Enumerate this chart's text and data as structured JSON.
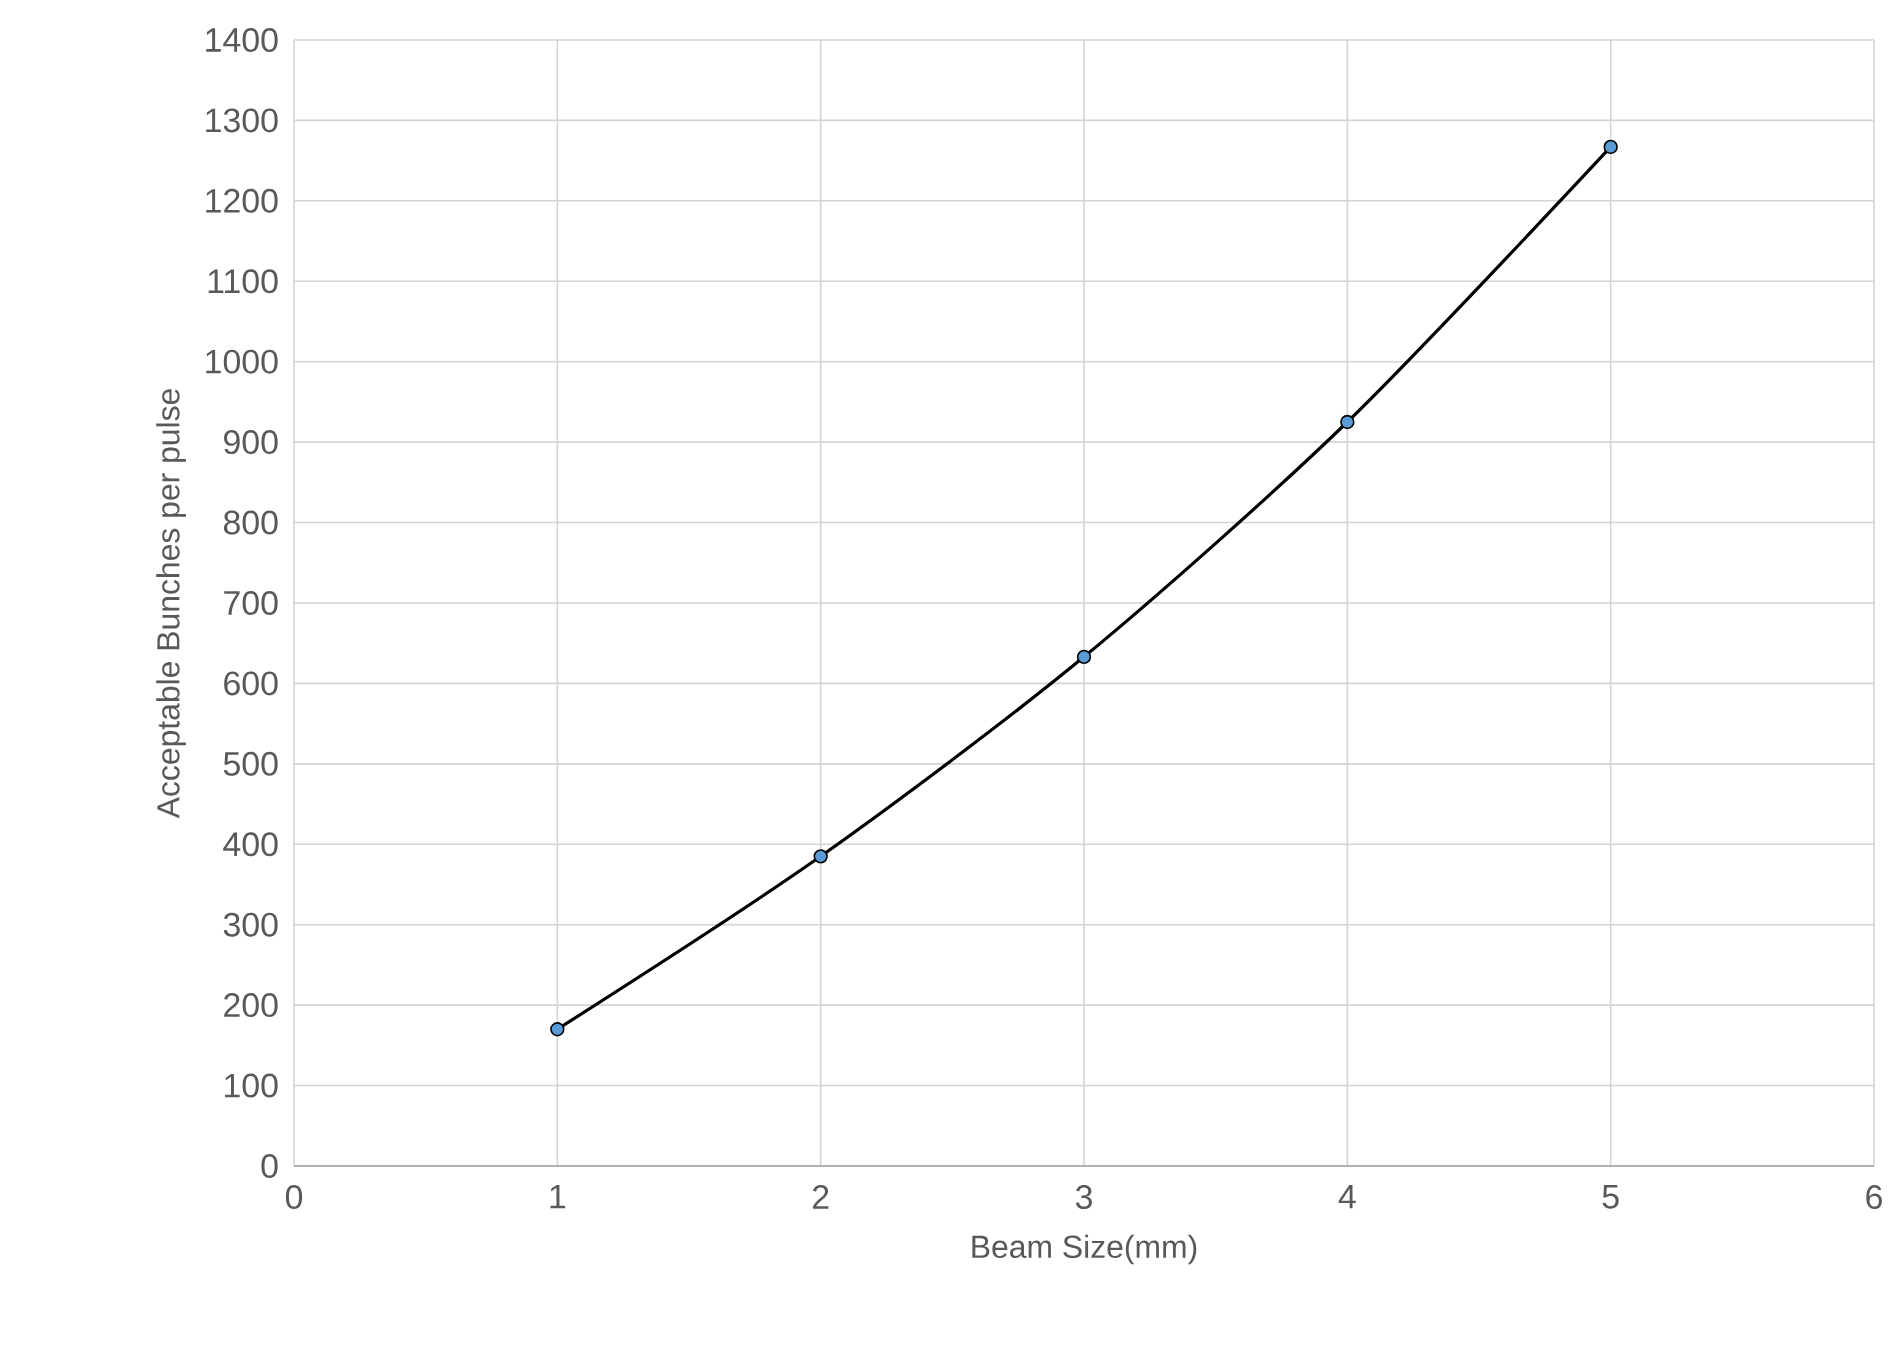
{
  "chart_data": {
    "type": "line",
    "xlabel": "Beam Size(mm)",
    "ylabel": "Acceptable Bunches per pulse",
    "x": [
      1,
      2,
      3,
      4,
      5
    ],
    "series": [
      {
        "color": "#000000",
        "values": [
          170,
          385,
          633,
          925,
          1267
        ]
      }
    ],
    "xlim": [
      0,
      6
    ],
    "xticks": [
      0,
      1,
      2,
      3,
      4,
      5,
      6
    ],
    "ylim": [
      0,
      1400
    ],
    "yticks": [
      0,
      100,
      200,
      300,
      400,
      500,
      600,
      700,
      800,
      900,
      1000,
      1100,
      1200,
      1300,
      1400
    ],
    "grid": true,
    "marker": "circle",
    "line_style": "solid"
  }
}
